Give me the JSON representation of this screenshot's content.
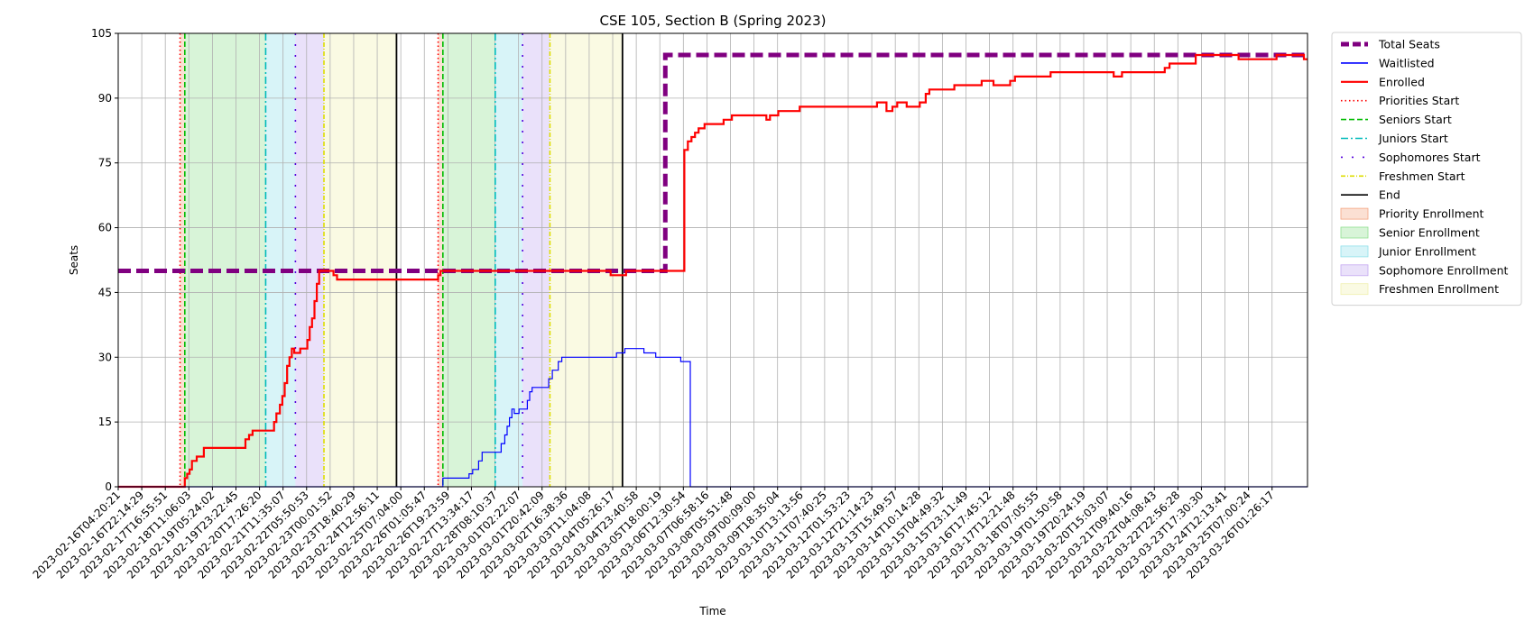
{
  "chart_data": {
    "type": "line",
    "title": "CSE 105, Section B (Spring 2023)",
    "xlabel": "Time",
    "ylabel": "Seats",
    "ylim": [
      0,
      105
    ],
    "xlim": [
      0,
      100
    ],
    "grid": true,
    "legend_placement": "outside-right-top",
    "y_ticks": [
      0,
      15,
      30,
      45,
      60,
      75,
      90,
      105
    ],
    "x_ticks": [
      "2023-02-16T04:20:21",
      "2023-02-16T22:14:29",
      "2023-02-17T16:55:51",
      "2023-02-18T11:06:03",
      "2023-02-19T05:24:02",
      "2023-02-19T23:22:45",
      "2023-02-20T17:26:20",
      "2023-02-21T11:35:07",
      "2023-02-22T05:50:53",
      "2023-02-23T00:01:52",
      "2023-02-23T18:40:29",
      "2023-02-24T12:56:11",
      "2023-02-25T07:04:00",
      "2023-02-26T01:05:47",
      "2023-02-26T19:23:59",
      "2023-02-27T13:34:17",
      "2023-02-28T08:10:37",
      "2023-03-01T02:22:07",
      "2023-03-01T20:42:09",
      "2023-03-02T16:38:36",
      "2023-03-03T11:04:08",
      "2023-03-04T05:26:17",
      "2023-03-04T23:40:58",
      "2023-03-05T18:00:19",
      "2023-03-06T12:30:54",
      "2023-03-07T06:58:16",
      "2023-03-08T05:51:48",
      "2023-03-09T00:09:00",
      "2023-03-09T18:35:04",
      "2023-03-10T13:13:56",
      "2023-03-11T07:40:25",
      "2023-03-12T01:53:23",
      "2023-03-12T21:14:23",
      "2023-03-13T15:49:57",
      "2023-03-14T10:14:28",
      "2023-03-15T04:49:32",
      "2023-03-15T23:11:49",
      "2023-03-16T17:45:12",
      "2023-03-17T12:21:48",
      "2023-03-18T07:05:55",
      "2023-03-19T01:50:58",
      "2023-03-19T20:24:19",
      "2023-03-20T15:03:07",
      "2023-03-21T09:40:16",
      "2023-03-22T04:08:43",
      "2023-03-22T22:56:28",
      "2023-03-23T17:30:30",
      "2023-03-24T12:13:41",
      "2023-03-25T07:00:24",
      "2023-03-26T01:26:17"
    ],
    "series": [
      {
        "name": "Total Seats",
        "color": "#800080",
        "style": "dashed-thick",
        "points": [
          [
            0,
            50
          ],
          [
            46,
            50
          ],
          [
            46,
            100
          ],
          [
            100,
            100
          ]
        ]
      },
      {
        "name": "Waitlisted",
        "color": "#0000ff",
        "style": "solid-thin",
        "points": [
          [
            0,
            0
          ],
          [
            27.3,
            0
          ],
          [
            27.3,
            2
          ],
          [
            29.5,
            2
          ],
          [
            29.5,
            3
          ],
          [
            29.8,
            3
          ],
          [
            29.8,
            4
          ],
          [
            30.3,
            4
          ],
          [
            30.3,
            6
          ],
          [
            30.6,
            6
          ],
          [
            30.6,
            8
          ],
          [
            32.2,
            8
          ],
          [
            32.2,
            10
          ],
          [
            32.5,
            10
          ],
          [
            32.5,
            12
          ],
          [
            32.7,
            12
          ],
          [
            32.7,
            14
          ],
          [
            32.9,
            14
          ],
          [
            32.9,
            16
          ],
          [
            33.1,
            16
          ],
          [
            33.1,
            18
          ],
          [
            33.3,
            18
          ],
          [
            33.3,
            17
          ],
          [
            33.7,
            17
          ],
          [
            33.7,
            18
          ],
          [
            34.4,
            18
          ],
          [
            34.4,
            20
          ],
          [
            34.6,
            20
          ],
          [
            34.6,
            22
          ],
          [
            34.8,
            22
          ],
          [
            34.8,
            23
          ],
          [
            36.2,
            23
          ],
          [
            36.2,
            25
          ],
          [
            36.5,
            25
          ],
          [
            36.5,
            27
          ],
          [
            37,
            27
          ],
          [
            37,
            29
          ],
          [
            37.3,
            29
          ],
          [
            37.3,
            30
          ],
          [
            41.9,
            30
          ],
          [
            41.9,
            31
          ],
          [
            42.6,
            31
          ],
          [
            42.6,
            32
          ],
          [
            44.2,
            32
          ],
          [
            44.2,
            31
          ],
          [
            45.2,
            31
          ],
          [
            45.2,
            30
          ],
          [
            47.3,
            30
          ],
          [
            47.3,
            29
          ],
          [
            48.1,
            29
          ],
          [
            48.1,
            0
          ],
          [
            100,
            0
          ]
        ]
      },
      {
        "name": "Enrolled",
        "color": "#ff0000",
        "style": "solid-thick",
        "points": [
          [
            0,
            0
          ],
          [
            5.6,
            0
          ],
          [
            5.6,
            2
          ],
          [
            5.8,
            2
          ],
          [
            5.8,
            3
          ],
          [
            6,
            3
          ],
          [
            6,
            4
          ],
          [
            6.2,
            4
          ],
          [
            6.2,
            6
          ],
          [
            6.6,
            6
          ],
          [
            6.6,
            7
          ],
          [
            7.2,
            7
          ],
          [
            7.2,
            9
          ],
          [
            10.7,
            9
          ],
          [
            10.7,
            11
          ],
          [
            11,
            11
          ],
          [
            11,
            12
          ],
          [
            11.3,
            12
          ],
          [
            11.3,
            13
          ],
          [
            13.1,
            13
          ],
          [
            13.1,
            15
          ],
          [
            13.3,
            15
          ],
          [
            13.3,
            17
          ],
          [
            13.6,
            17
          ],
          [
            13.6,
            19
          ],
          [
            13.8,
            19
          ],
          [
            13.8,
            21
          ],
          [
            14,
            21
          ],
          [
            14,
            24
          ],
          [
            14.2,
            24
          ],
          [
            14.2,
            28
          ],
          [
            14.4,
            28
          ],
          [
            14.4,
            30
          ],
          [
            14.6,
            30
          ],
          [
            14.6,
            32
          ],
          [
            14.8,
            32
          ],
          [
            14.8,
            31
          ],
          [
            15.3,
            31
          ],
          [
            15.3,
            32
          ],
          [
            15.9,
            32
          ],
          [
            15.9,
            34
          ],
          [
            16.1,
            34
          ],
          [
            16.1,
            37
          ],
          [
            16.3,
            37
          ],
          [
            16.3,
            39
          ],
          [
            16.5,
            39
          ],
          [
            16.5,
            43
          ],
          [
            16.7,
            43
          ],
          [
            16.7,
            47
          ],
          [
            16.9,
            47
          ],
          [
            16.9,
            50
          ],
          [
            18.1,
            50
          ],
          [
            18.1,
            49
          ],
          [
            18.4,
            49
          ],
          [
            18.4,
            48
          ],
          [
            26.9,
            48
          ],
          [
            26.9,
            49
          ],
          [
            27.1,
            49
          ],
          [
            27.1,
            50
          ],
          [
            41.4,
            50
          ],
          [
            41.4,
            49
          ],
          [
            42.7,
            49
          ],
          [
            42.7,
            50
          ],
          [
            47.6,
            50
          ],
          [
            47.6,
            78
          ],
          [
            47.9,
            78
          ],
          [
            47.9,
            80
          ],
          [
            48.2,
            80
          ],
          [
            48.2,
            81
          ],
          [
            48.5,
            81
          ],
          [
            48.5,
            82
          ],
          [
            48.8,
            82
          ],
          [
            48.8,
            83
          ],
          [
            49.3,
            83
          ],
          [
            49.3,
            84
          ],
          [
            50.9,
            84
          ],
          [
            50.9,
            85
          ],
          [
            51.6,
            85
          ],
          [
            51.6,
            86
          ],
          [
            54.5,
            86
          ],
          [
            54.5,
            85
          ],
          [
            54.8,
            85
          ],
          [
            54.8,
            86
          ],
          [
            55.5,
            86
          ],
          [
            55.5,
            87
          ],
          [
            57.3,
            87
          ],
          [
            57.3,
            88
          ],
          [
            63.8,
            88
          ],
          [
            63.8,
            89
          ],
          [
            64.6,
            89
          ],
          [
            64.6,
            87
          ],
          [
            65.1,
            87
          ],
          [
            65.1,
            88
          ],
          [
            65.5,
            88
          ],
          [
            65.5,
            89
          ],
          [
            66.3,
            89
          ],
          [
            66.3,
            88
          ],
          [
            67.4,
            88
          ],
          [
            67.4,
            89
          ],
          [
            67.9,
            89
          ],
          [
            67.9,
            91
          ],
          [
            68.2,
            91
          ],
          [
            68.2,
            92
          ],
          [
            70.3,
            92
          ],
          [
            70.3,
            93
          ],
          [
            72.6,
            93
          ],
          [
            72.6,
            94
          ],
          [
            73.6,
            94
          ],
          [
            73.6,
            93
          ],
          [
            75,
            93
          ],
          [
            75,
            94
          ],
          [
            75.4,
            94
          ],
          [
            75.4,
            95
          ],
          [
            78.4,
            95
          ],
          [
            78.4,
            96
          ],
          [
            83.7,
            96
          ],
          [
            83.7,
            95
          ],
          [
            84.4,
            95
          ],
          [
            84.4,
            96
          ],
          [
            88,
            96
          ],
          [
            88,
            97
          ],
          [
            88.4,
            97
          ],
          [
            88.4,
            98
          ],
          [
            90.6,
            98
          ],
          [
            90.6,
            100
          ],
          [
            94.2,
            100
          ],
          [
            94.2,
            99
          ],
          [
            97.4,
            99
          ],
          [
            97.4,
            100
          ],
          [
            99.7,
            100
          ],
          [
            99.7,
            99
          ],
          [
            100,
            99
          ]
        ]
      }
    ],
    "markers": [
      {
        "name": "Priorities Start",
        "color": "#ff0000",
        "style": "dotted",
        "x": [
          5.2,
          26.9
        ]
      },
      {
        "name": "Seniors Start",
        "color": "#00bb00",
        "style": "dashed",
        "x": [
          5.6,
          27.3
        ]
      },
      {
        "name": "Juniors Start",
        "color": "#00bbbb",
        "style": "dashdot",
        "x": [
          12.4,
          31.7
        ]
      },
      {
        "name": "Sophomores Start",
        "color": "#5500dd",
        "style": "loose-dashdot",
        "x": [
          14.9,
          34
        ]
      },
      {
        "name": "Freshmen Start",
        "color": "#dddd00",
        "style": "dashdot-thin",
        "x": [
          17.3,
          36.3
        ]
      },
      {
        "name": "End",
        "color": "#000000",
        "style": "solid",
        "x": [
          23.4,
          42.4
        ]
      }
    ],
    "bands": [
      {
        "name": "Priority Enrollment",
        "color": "#f4a582",
        "ranges": [
          [
            5.2,
            5.6
          ],
          [
            26.9,
            27.3
          ]
        ]
      },
      {
        "name": "Senior Enrollment",
        "color": "#90e090",
        "ranges": [
          [
            5.6,
            12.4
          ],
          [
            27.3,
            31.7
          ]
        ]
      },
      {
        "name": "Junior Enrollment",
        "color": "#90e0ea",
        "ranges": [
          [
            12.4,
            14.9
          ],
          [
            31.7,
            34
          ]
        ]
      },
      {
        "name": "Sophomore Enrollment",
        "color": "#c4a8f0",
        "ranges": [
          [
            14.9,
            17.3
          ],
          [
            34,
            36.3
          ]
        ]
      },
      {
        "name": "Freshmen Enrollment",
        "color": "#f0f0b0",
        "ranges": [
          [
            17.3,
            23.4
          ],
          [
            36.3,
            42.4
          ]
        ]
      }
    ]
  }
}
